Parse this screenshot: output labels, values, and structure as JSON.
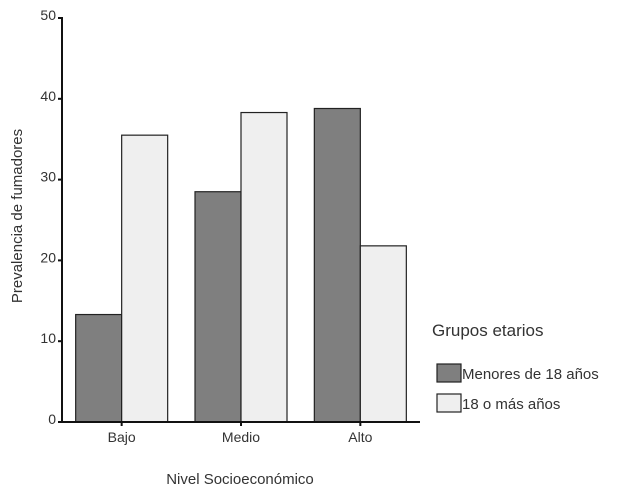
{
  "chart_data": {
    "type": "bar",
    "title": "",
    "xlabel": "Nivel Socioeconómico",
    "ylabel": "Prevalencia de fumadores",
    "categories": [
      "Bajo",
      "Medio",
      "Alto"
    ],
    "ylim": [
      0,
      50
    ],
    "yticks": [
      0,
      10,
      20,
      30,
      40,
      50
    ],
    "grid": false,
    "legend": {
      "title": "Grupos etarios",
      "position": "right"
    },
    "series": [
      {
        "name": "Menores de 18 años",
        "values": [
          13.3,
          28.5,
          38.8
        ],
        "color": "#7f7f7f"
      },
      {
        "name": "18 o más años",
        "values": [
          35.5,
          38.3,
          21.8
        ],
        "color": "#efefef"
      }
    ]
  }
}
